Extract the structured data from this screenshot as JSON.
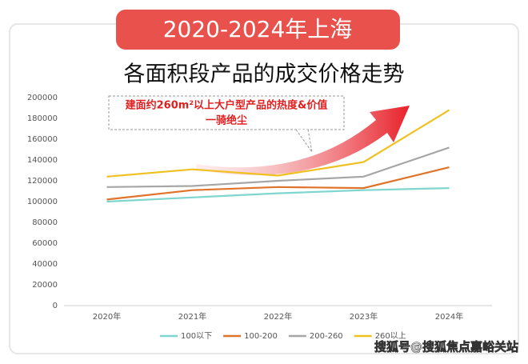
{
  "chart_data": {
    "type": "line",
    "banner": "2020-2024年上海",
    "title": "各面积段产品的成交价格走势",
    "annotation": [
      "建面约260m²以上大户型产品的热度&价值",
      "一骑绝尘"
    ],
    "watermark": "搜狐号@搜狐焦点嘉峪关站",
    "categories": [
      "2020年",
      "2021年",
      "2022年",
      "2023年",
      "2024年"
    ],
    "series": [
      {
        "name": "100以下",
        "color": "#7fd6cf",
        "values": [
          100000,
          104000,
          108000,
          111000,
          113000
        ]
      },
      {
        "name": "100-200",
        "color": "#e0732a",
        "values": [
          102000,
          111000,
          114000,
          113000,
          133000
        ]
      },
      {
        "name": "200-260",
        "color": "#a6a6a6",
        "values": [
          114000,
          115000,
          120000,
          124000,
          152000
        ]
      },
      {
        "name": "260以上",
        "color": "#f0c020",
        "values": [
          124000,
          131000,
          125000,
          138000,
          188000
        ]
      }
    ],
    "ylim": [
      0,
      200000
    ],
    "yticks": [
      0,
      20000,
      40000,
      60000,
      80000,
      100000,
      120000,
      140000,
      160000,
      180000,
      200000
    ],
    "grid": false
  }
}
